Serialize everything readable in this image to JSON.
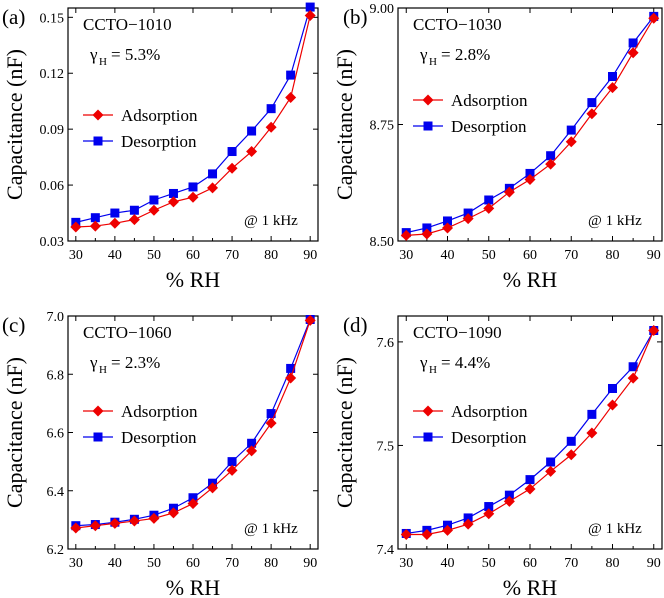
{
  "chart_data": [
    {
      "type": "line",
      "panel_label": "(a)",
      "sample": "CCTO−1010",
      "gamma_symbol": "γ",
      "gamma_sub": "H",
      "gamma_value": "= 5.3%",
      "frequency_note": "@ 1 kHz",
      "xlabel": "% RH",
      "ylabel": "Capacitance (nF)",
      "xlim": [
        28,
        92
      ],
      "ylim": [
        0.03,
        0.155
      ],
      "xticks": [
        "30",
        "40",
        "50",
        "60",
        "70",
        "80",
        "90"
      ],
      "yticks": [
        "0.03",
        "0.06",
        "0.09",
        "0.12",
        "0.15"
      ],
      "x": [
        30,
        35,
        40,
        45,
        50,
        55,
        60,
        65,
        70,
        75,
        80,
        85,
        90
      ],
      "series": [
        {
          "name": "Adsorption",
          "color": "#ee0000",
          "marker": "diamond",
          "values": [
            0.0375,
            0.038,
            0.0395,
            0.0415,
            0.0465,
            0.051,
            0.0535,
            0.0585,
            0.069,
            0.078,
            0.091,
            0.107,
            0.151
          ]
        },
        {
          "name": "Desorption",
          "color": "#0000ee",
          "marker": "square",
          "values": [
            0.04,
            0.0425,
            0.045,
            0.0465,
            0.052,
            0.0555,
            0.059,
            0.066,
            0.078,
            0.089,
            0.101,
            0.119,
            0.1555
          ]
        }
      ]
    },
    {
      "type": "line",
      "panel_label": "(b)",
      "sample": "CCTO−1030",
      "gamma_symbol": "γ",
      "gamma_sub": "H",
      "gamma_value": "= 2.8%",
      "frequency_note": "@ 1 kHz",
      "xlabel": "% RH",
      "ylabel": "Capacitance (nF)",
      "xlim": [
        28,
        92
      ],
      "ylim": [
        8.5,
        9.0
      ],
      "xticks": [
        "30",
        "40",
        "50",
        "60",
        "70",
        "80",
        "90"
      ],
      "yticks": [
        "8.50",
        "8.75",
        "9.00"
      ],
      "x": [
        30,
        35,
        40,
        45,
        50,
        55,
        60,
        65,
        70,
        75,
        80,
        85,
        90
      ],
      "series": [
        {
          "name": "Adsorption",
          "color": "#ee0000",
          "marker": "diamond",
          "values": [
            8.512,
            8.515,
            8.528,
            8.548,
            8.57,
            8.605,
            8.632,
            8.665,
            8.713,
            8.773,
            8.829,
            8.904,
            8.978
          ]
        },
        {
          "name": "Desorption",
          "color": "#0000ee",
          "marker": "square",
          "values": [
            8.518,
            8.528,
            8.543,
            8.56,
            8.588,
            8.613,
            8.645,
            8.683,
            8.738,
            8.797,
            8.853,
            8.925,
            8.982
          ]
        }
      ]
    },
    {
      "type": "line",
      "panel_label": "(c)",
      "sample": "CCTO−1060",
      "gamma_symbol": "γ",
      "gamma_sub": "H",
      "gamma_value": "= 2.3%",
      "frequency_note": "@ 1 kHz",
      "xlabel": "% RH",
      "ylabel": "Capacitance (nF)",
      "xlim": [
        28,
        92
      ],
      "ylim": [
        6.2,
        7.0
      ],
      "xticks": [
        "30",
        "40",
        "50",
        "60",
        "70",
        "80",
        "90"
      ],
      "yticks": [
        "6.2",
        "6.4",
        "6.6",
        "6.8",
        "7.0"
      ],
      "x": [
        30,
        35,
        40,
        45,
        50,
        55,
        60,
        65,
        70,
        75,
        80,
        85,
        90
      ],
      "series": [
        {
          "name": "Adsorption",
          "color": "#ee0000",
          "marker": "diamond",
          "values": [
            6.272,
            6.28,
            6.288,
            6.296,
            6.305,
            6.324,
            6.356,
            6.41,
            6.47,
            6.537,
            6.632,
            6.787,
            6.985
          ]
        },
        {
          "name": "Desorption",
          "color": "#0000ee",
          "marker": "square",
          "values": [
            6.28,
            6.284,
            6.292,
            6.302,
            6.316,
            6.34,
            6.376,
            6.426,
            6.5,
            6.563,
            6.665,
            6.82,
            6.988
          ]
        }
      ]
    },
    {
      "type": "line",
      "panel_label": "(d)",
      "sample": "CCTO−1090",
      "gamma_symbol": "γ",
      "gamma_sub": "H",
      "gamma_value": "= 4.4%",
      "frequency_note": "@ 1 kHz",
      "xlabel": "% RH",
      "ylabel": "Capacitance (nF)",
      "xlim": [
        28,
        92
      ],
      "ylim": [
        7.4,
        7.625
      ],
      "xticks": [
        "30",
        "40",
        "50",
        "60",
        "70",
        "80",
        "90"
      ],
      "yticks": [
        "7.4",
        "7.5",
        "7.6"
      ],
      "x": [
        30,
        35,
        40,
        45,
        50,
        55,
        60,
        65,
        70,
        75,
        80,
        85,
        90
      ],
      "series": [
        {
          "name": "Adsorption",
          "color": "#ee0000",
          "marker": "diamond",
          "values": [
            7.414,
            7.414,
            7.418,
            7.424,
            7.434,
            7.446,
            7.458,
            7.475,
            7.491,
            7.512,
            7.539,
            7.565,
            7.611
          ]
        },
        {
          "name": "Desorption",
          "color": "#0000ee",
          "marker": "square",
          "values": [
            7.415,
            7.418,
            7.423,
            7.43,
            7.441,
            7.452,
            7.467,
            7.484,
            7.504,
            7.53,
            7.555,
            7.576,
            7.611
          ]
        }
      ]
    }
  ]
}
